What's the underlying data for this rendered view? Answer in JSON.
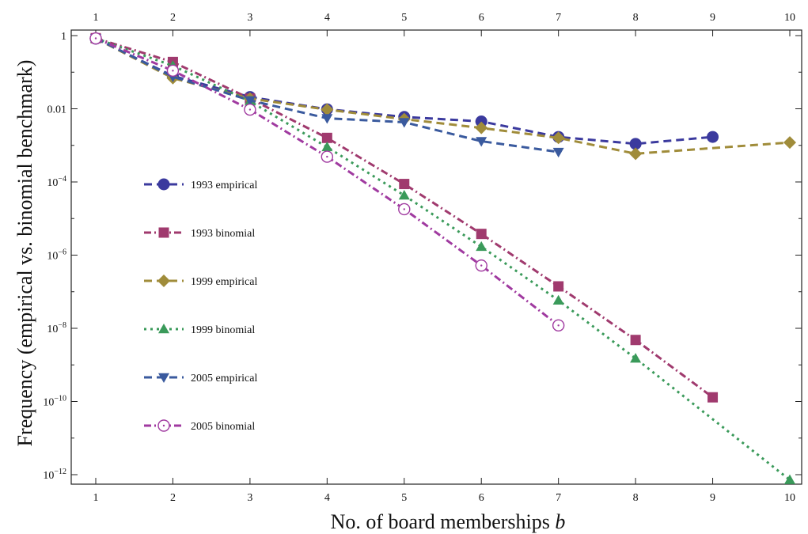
{
  "chart_data": {
    "type": "line",
    "title": "",
    "xlabel": "No. of board memberships",
    "xlabel_var": "b",
    "ylabel": "Frequency (empirical vs. binomial benchmark)",
    "y_scale": "log",
    "xlim": [
      1,
      10
    ],
    "ylim": [
      1e-12,
      1
    ],
    "x_ticks": [
      "1",
      "2",
      "3",
      "4",
      "5",
      "6",
      "7",
      "8",
      "9",
      "10"
    ],
    "y_ticks": [
      {
        "base": "1",
        "exp": "",
        "value": 1
      },
      {
        "base": "0.01",
        "exp": "",
        "value": 0.01
      },
      {
        "base": "10",
        "exp": "−4",
        "value": 0.0001
      },
      {
        "base": "10",
        "exp": "−6",
        "value": 1e-06
      },
      {
        "base": "10",
        "exp": "−8",
        "value": 1e-08
      },
      {
        "base": "10",
        "exp": "−10",
        "value": 1e-10
      },
      {
        "base": "10",
        "exp": "−12",
        "value": 1e-12
      }
    ],
    "legend_position": "left-middle",
    "series": [
      {
        "name": "1993 empirical",
        "color": "#3b3a9e",
        "marker": "circle",
        "dash": "10,6",
        "x": [
          1,
          2,
          3,
          4,
          5,
          6,
          7,
          8,
          9
        ],
        "y": [
          0.82,
          0.079,
          0.021,
          0.0097,
          0.006,
          0.0045,
          0.0017,
          0.0011,
          0.0017
        ]
      },
      {
        "name": "1993 binomial",
        "color": "#a03a6e",
        "marker": "square",
        "dash": "9,4,2,4",
        "x": [
          1,
          2,
          3,
          4,
          5,
          6,
          7,
          8,
          9
        ],
        "y": [
          0.85,
          0.19,
          0.019,
          0.0016,
          8.8e-05,
          3.8e-06,
          1.4e-07,
          4.8e-09,
          1.3e-10
        ]
      },
      {
        "name": "1999 empirical",
        "color": "#a08c3a",
        "marker": "diamond",
        "dash": "10,6",
        "x": [
          1,
          2,
          3,
          4,
          5,
          6,
          7,
          8,
          10
        ],
        "y": [
          0.84,
          0.069,
          0.019,
          0.0095,
          0.0052,
          0.003,
          0.0016,
          0.00059,
          0.0012
        ]
      },
      {
        "name": "1999 binomial",
        "color": "#3a9a5a",
        "marker": "triangle-up",
        "dash": "3,5",
        "x": [
          1,
          2,
          3,
          4,
          5,
          6,
          7,
          8,
          10
        ],
        "y": [
          0.84,
          0.15,
          0.016,
          0.0009,
          4.3e-05,
          1.7e-06,
          5.8e-08,
          1.5e-09,
          7.2e-13
        ]
      },
      {
        "name": "2005 empirical",
        "color": "#3a5a9e",
        "marker": "triangle-down",
        "dash": "10,6",
        "x": [
          1,
          2,
          3,
          4,
          5,
          6,
          7
        ],
        "y": [
          0.85,
          0.075,
          0.017,
          0.0055,
          0.0043,
          0.0013,
          0.00066
        ]
      },
      {
        "name": "2005 binomial",
        "color": "#a03aa0",
        "marker": "open-circle",
        "dash": "9,4,2,4",
        "x": [
          1,
          2,
          3,
          4,
          5,
          6,
          7
        ],
        "y": [
          0.84,
          0.11,
          0.0095,
          0.00049,
          1.8e-05,
          5.2e-07,
          1.2e-08
        ]
      }
    ]
  }
}
